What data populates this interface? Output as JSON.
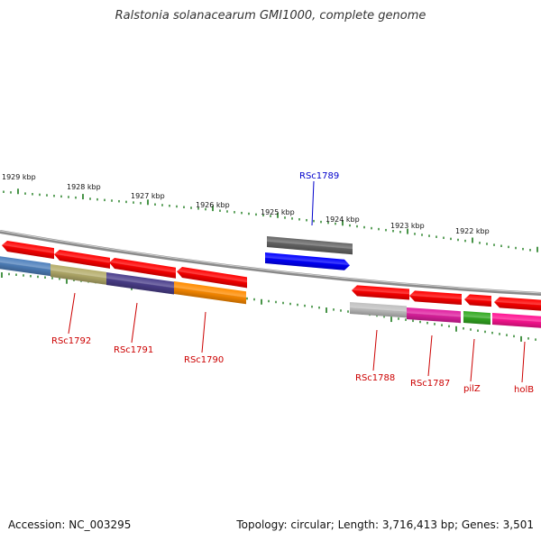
{
  "title": "Ralstonia solanacearum GMI1000, complete genome",
  "footer": {
    "accession": "Accession: NC_003295",
    "summary": "Topology: circular; Length: 3,716,413 bp; Genes: 3,501"
  },
  "colors": {
    "tick": "#1a7a1a",
    "backbone": "#8a8a8a",
    "gene_label": "#cc0000",
    "highlight_label": "#0000cc"
  },
  "scale_labels": [
    "1929 kbp",
    "1928 kbp",
    "1927 kbp",
    "1926 kbp",
    "1925 kbp",
    "1924 kbp",
    "1923 kbp",
    "1922 kbp"
  ],
  "gene_labels": [
    {
      "text": "RSc1789",
      "highlight": true
    },
    {
      "text": "RSc1792",
      "highlight": false
    },
    {
      "text": "RSc1791",
      "highlight": false
    },
    {
      "text": "RSc1790",
      "highlight": false
    },
    {
      "text": "RSc1788",
      "highlight": false
    },
    {
      "text": "RSc1787",
      "highlight": false
    },
    {
      "text": "pilZ",
      "highlight": false
    },
    {
      "text": "holB",
      "highlight": false
    }
  ],
  "features": {
    "forward_outer": [
      "#666666"
    ],
    "forward_inner": [
      "#0000ff"
    ],
    "reverse_outer_left": [
      "#ff0000",
      "#ff0000",
      "#ff0000",
      "#ff0000"
    ],
    "reverse_inner_left": [
      "#4f81bd",
      "#b5ad6b",
      "#4b3f8c",
      "#ff8c00"
    ],
    "reverse_outer_right": [
      "#ff0000",
      "#ff0000",
      "#ff0000",
      "#ff0000"
    ],
    "reverse_inner_right": [
      "#c0c0c0",
      "#e020a0",
      "#33aa22",
      "#ff1493"
    ]
  }
}
